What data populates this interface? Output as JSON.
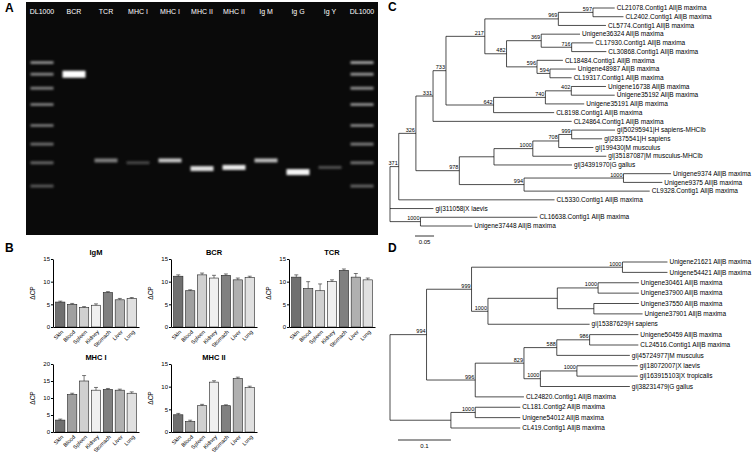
{
  "panel_labels": [
    "A",
    "B",
    "C",
    "D"
  ],
  "gel": {
    "lanes": [
      "DL1000",
      "BCR",
      "TCR",
      "MHC I",
      "MHC I",
      "MHC II",
      "MHC II",
      "Ig M",
      "Ig G",
      "Ig Y",
      "DL1000"
    ]
  },
  "chart_data": [
    {
      "type": "bar",
      "title": "IgM",
      "y_label": "ΔCP",
      "categories": [
        "Skin",
        "Blood",
        "Spleen",
        "Kidney",
        "Stomach",
        "Liver",
        "Lung"
      ],
      "values": [
        5.5,
        5.0,
        4.3,
        4.8,
        7.6,
        6.0,
        6.3
      ],
      "errors": [
        0.2,
        0.2,
        0.2,
        0.3,
        0.2,
        0.3,
        0.2
      ],
      "colors": [
        "#707070",
        "#a0a0a0",
        "#d0d0d0",
        "#f0f0f0",
        "#808080",
        "#b0b0b0",
        "#e0e0e0"
      ],
      "ylim": [
        0,
        15
      ],
      "yticks": [
        0,
        5,
        10,
        15
      ]
    },
    {
      "type": "bar",
      "title": "BCR",
      "y_label": "ΔCP",
      "categories": [
        "Skin",
        "Blood",
        "Spleen",
        "Kidney",
        "Stomach",
        "Liver",
        "Lung"
      ],
      "values": [
        11.2,
        8.0,
        11.5,
        10.8,
        11.4,
        10.4,
        10.9
      ],
      "errors": [
        0.3,
        0.2,
        0.4,
        0.6,
        0.3,
        0.4,
        0.3
      ],
      "colors": [
        "#707070",
        "#a0a0a0",
        "#d0d0d0",
        "#f0f0f0",
        "#808080",
        "#b0b0b0",
        "#e0e0e0"
      ],
      "ylim": [
        0,
        15
      ],
      "yticks": [
        0,
        5,
        10,
        15
      ]
    },
    {
      "type": "bar",
      "title": "TCR",
      "y_label": "ΔCP",
      "categories": [
        "Skin",
        "Blood",
        "Spleen",
        "Kidney",
        "Stomach",
        "Liver",
        "Lung"
      ],
      "values": [
        11.0,
        8.5,
        8.0,
        10.0,
        12.5,
        11.0,
        10.4
      ],
      "errors": [
        0.5,
        1.5,
        1.5,
        0.4,
        0.3,
        0.8,
        0.4
      ],
      "colors": [
        "#707070",
        "#a0a0a0",
        "#d0d0d0",
        "#f0f0f0",
        "#808080",
        "#b0b0b0",
        "#e0e0e0"
      ],
      "ylim": [
        0,
        15
      ],
      "yticks": [
        0,
        5,
        10,
        15
      ]
    },
    {
      "type": "bar",
      "title": "MHC I",
      "y_label": "ΔCP",
      "categories": [
        "Skin",
        "Blood",
        "Spleen",
        "Kidney",
        "Stomach",
        "Liver",
        "Lung"
      ],
      "values": [
        3.5,
        11.0,
        15.0,
        12.3,
        12.5,
        12.3,
        11.4
      ],
      "errors": [
        0.3,
        0.4,
        1.6,
        0.8,
        0.3,
        0.3,
        0.4
      ],
      "colors": [
        "#707070",
        "#a0a0a0",
        "#d0d0d0",
        "#f0f0f0",
        "#808080",
        "#b0b0b0",
        "#e0e0e0"
      ],
      "ylim": [
        0,
        20
      ],
      "yticks": [
        0,
        5,
        10,
        15,
        20
      ]
    },
    {
      "type": "bar",
      "title": "MHC II",
      "y_label": "ΔCP",
      "categories": [
        "Skin",
        "Blood",
        "Spleen",
        "Kidney",
        "Stomach",
        "Liver",
        "Lung"
      ],
      "values": [
        3.8,
        2.3,
        5.8,
        11.0,
        5.8,
        11.8,
        9.8
      ],
      "errors": [
        0.3,
        0.3,
        0.3,
        0.3,
        0.2,
        0.3,
        0.3
      ],
      "colors": [
        "#707070",
        "#a0a0a0",
        "#d0d0d0",
        "#f0f0f0",
        "#808080",
        "#b0b0b0",
        "#e0e0e0"
      ],
      "ylim": [
        0,
        15
      ],
      "yticks": [
        0,
        5,
        10,
        15
      ]
    }
  ],
  "trees": [
    {
      "scale_bar": 0.05,
      "root": {
        "children": [
          {
            "support": 371,
            "length": 0.023,
            "children": [
              {
                "support": 326,
                "length": 0.045,
                "children": [
                  {
                    "support": 331,
                    "length": 0.045,
                    "children": [
                      {
                        "support": 733,
                        "length": 0.034,
                        "children": [
                          {
                            "support": 217,
                            "length": 0.102,
                            "children": [
                              {
                                "support": 969,
                                "length": 0.193,
                                "children": [
                                  {
                                    "support": 597,
                                    "length": 0.091,
                                    "children": [
                                      {
                                        "label": "CL21078.Contig1 All|B maxima",
                                        "length": 0.057
                                      },
                                      {
                                        "label": "CL2402.Contig1 All|B maxima",
                                        "length": 0.08
                                      }
                                    ]
                                  },
                                  {
                                    "label": "CL5774.Contig1 All|B maxima",
                                    "length": 0.125
                                  }
                                ]
                              },
                              {
                                "support": 482,
                                "length": 0.057,
                                "children": [
                                  {
                                    "support": 369,
                                    "length": 0.091,
                                    "children": [
                                      {
                                        "label": "Unigene36324 All|B maxima",
                                        "length": 0.102
                                      },
                                      {
                                        "support": 716,
                                        "length": 0.08,
                                        "children": [
                                          {
                                            "label": "CL17930.Contig1 All|B maxima",
                                            "length": 0.057
                                          },
                                          {
                                            "label": "CL30868.Contig1 All|B maxima",
                                            "length": 0.091
                                          }
                                        ]
                                      }
                                    ]
                                  },
                                  {
                                    "support": 596,
                                    "length": 0.08,
                                    "children": [
                                      {
                                        "label": "CL18484.Contig1 All|B maxima",
                                        "length": 0.068
                                      },
                                      {
                                        "support": 594,
                                        "length": 0.034,
                                        "children": [
                                          {
                                            "label": "Unigene48987 All|B maxima",
                                            "length": 0.068
                                          },
                                          {
                                            "label": "CL19317.Contig1 All|B maxima",
                                            "length": 0.057
                                          }
                                        ]
                                      }
                                    ]
                                  }
                                ]
                              }
                            ]
                          },
                          {
                            "support": 642,
                            "length": 0.125,
                            "children": [
                              {
                                "support": 740,
                                "length": 0.136,
                                "children": [
                                  {
                                    "support": 402,
                                    "length": 0.068,
                                    "children": [
                                      {
                                        "label": "Unigene16738 All|B maxima",
                                        "length": 0.091
                                      },
                                      {
                                        "label": "Unigene35192 All|B maxima",
                                        "length": 0.114
                                      }
                                    ]
                                  },
                                  {
                                    "label": "Unigene35191 All|B maxima",
                                    "length": 0.102
                                  }
                                ]
                              },
                              {
                                "label": "CL8198.Contig1 All|B maxima",
                                "length": 0.159
                              }
                            ]
                          }
                        ]
                      },
                      {
                        "label": "CL24864.Contig1 All|B maxima",
                        "length": 0.364
                      }
                    ]
                  },
                  {
                    "support": 978,
                    "length": 0.114,
                    "children": [
                      {
                        "length": 0.091,
                        "children": [
                          {
                            "support": 1000,
                            "length": 0.102,
                            "children": [
                              {
                                "support": 708,
                                "length": 0.068,
                                "children": [
                                  {
                                    "support": 999,
                                    "length": 0.034,
                                    "children": [
                                      {
                                        "label": "gi|50295941|H sapiens-MHCIb",
                                        "length": 0.114
                                      },
                                      {
                                        "label": "gi|28375541|H sapiens",
                                        "length": 0.08
                                      }
                                    ]
                                  },
                                  {
                                    "label": "gi|199430|M musculus",
                                    "length": 0.091
                                  }
                                ]
                              },
                              {
                                "label": "gi|35187087|M musculus-MHCIb",
                                "length": 0.193
                              }
                            ]
                          },
                          {
                            "label": "gi|34391970|G gallus",
                            "length": 0.205
                          }
                        ]
                      },
                      {
                        "support": 994,
                        "length": 0.17,
                        "children": [
                          {
                            "support": 1000,
                            "length": 0.261,
                            "children": [
                              {
                                "label": "Unigene9374 All|B maxima",
                                "length": 0.125
                              },
                              {
                                "label": "Unigene9375 All|B maxima",
                                "length": 0.102
                              }
                            ]
                          },
                          {
                            "label": "CL9328.Contig1 All|B maxima",
                            "length": 0.33
                          }
                        ]
                      }
                    ]
                  }
                ]
              },
              {
                "label": "CL5330.Contig1 All|B maxima",
                "length": 0.409
              }
            ]
          },
          {
            "label": "gi|311058|X laevis",
            "length": 0.114
          },
          {
            "support": 1000,
            "length": 0.08,
            "children": [
              {
                "label": "CL16638.Contig1 All|B maxima",
                "length": 0.307
              },
              {
                "label": "Unigene37448 All|B maxima",
                "length": 0.136
              }
            ]
          }
        ]
      }
    },
    {
      "scale_bar": 0.1,
      "root": {
        "children": [
          {
            "support": 994,
            "length": 0.069,
            "children": [
              {
                "support": 999,
                "length": 0.085,
                "children": [
                  {
                    "support": 1000,
                    "length": 0.285,
                    "children": [
                      {
                        "label": "Unigene21621 All|B maxima",
                        "length": 0.085
                      },
                      {
                        "label": "Unigene54421 All|B maxima",
                        "length": 0.085
                      }
                    ]
                  },
                  {
                    "support": 1000,
                    "length": 0.031,
                    "children": [
                      {
                        "length": 0.131,
                        "children": [
                          {
                            "support": 1000,
                            "length": 0.077,
                            "children": [
                              {
                                "label": "Unigene30461 All|B maxima",
                                "length": 0.077
                              },
                              {
                                "label": "Unigene37900 All|B maxima",
                                "length": 0.077
                              }
                            ]
                          },
                          {
                            "length": 0.069,
                            "children": [
                              {
                                "label": "Unigene37550 All|B maxima",
                                "length": 0.085
                              },
                              {
                                "label": "Unigene37901 All|B maxima",
                                "length": 0.092
                              }
                            ]
                          }
                        ]
                      },
                      {
                        "label": "gi|15387629|H sapiens",
                        "length": 0.192
                      }
                    ]
                  }
                ]
              },
              {
                "support": 996,
                "length": 0.092,
                "children": [
                  {
                    "support": 829,
                    "length": 0.092,
                    "children": [
                      {
                        "support": 588,
                        "length": 0.062,
                        "children": [
                          {
                            "support": 986,
                            "length": 0.062,
                            "children": [
                              {
                                "label": "Unigene50459 All|B maxima",
                                "length": 0.092
                              },
                              {
                                "label": "CL24516.Contig1 All|B maxima",
                                "length": 0.092
                              }
                            ]
                          },
                          {
                            "label": "gi|45724977|M musculus",
                            "length": 0.138
                          }
                        ]
                      },
                      {
                        "support": 1000,
                        "length": 0.031,
                        "children": [
                          {
                            "support": 1000,
                            "length": 0.069,
                            "children": [
                              {
                                "label": "gi|18072007|X laevis",
                                "length": 0.115
                              },
                              {
                                "label": "gi|163915103|X tropicalis",
                                "length": 0.115
                              }
                            ]
                          },
                          {
                            "label": "gi|38231479|G gallus",
                            "length": 0.169
                          }
                        ]
                      }
                    ]
                  },
                  {
                    "label": "CL24820.Contig1 All|B maxima",
                    "length": 0.092
                  }
                ]
              }
            ]
          },
          {
            "length": 0.115,
            "children": [
              {
                "support": 1000,
                "length": 0.046,
                "children": [
                  {
                    "label": "CL181.Contig2 All|B maxima",
                    "length": 0.085
                  },
                  {
                    "label": "Unigene54012 All|B maxima",
                    "length": 0.085
                  }
                ]
              },
              {
                "label": "CL419.Contig1 All|B maxima",
                "length": 0.131
              }
            ]
          }
        ]
      }
    }
  ]
}
